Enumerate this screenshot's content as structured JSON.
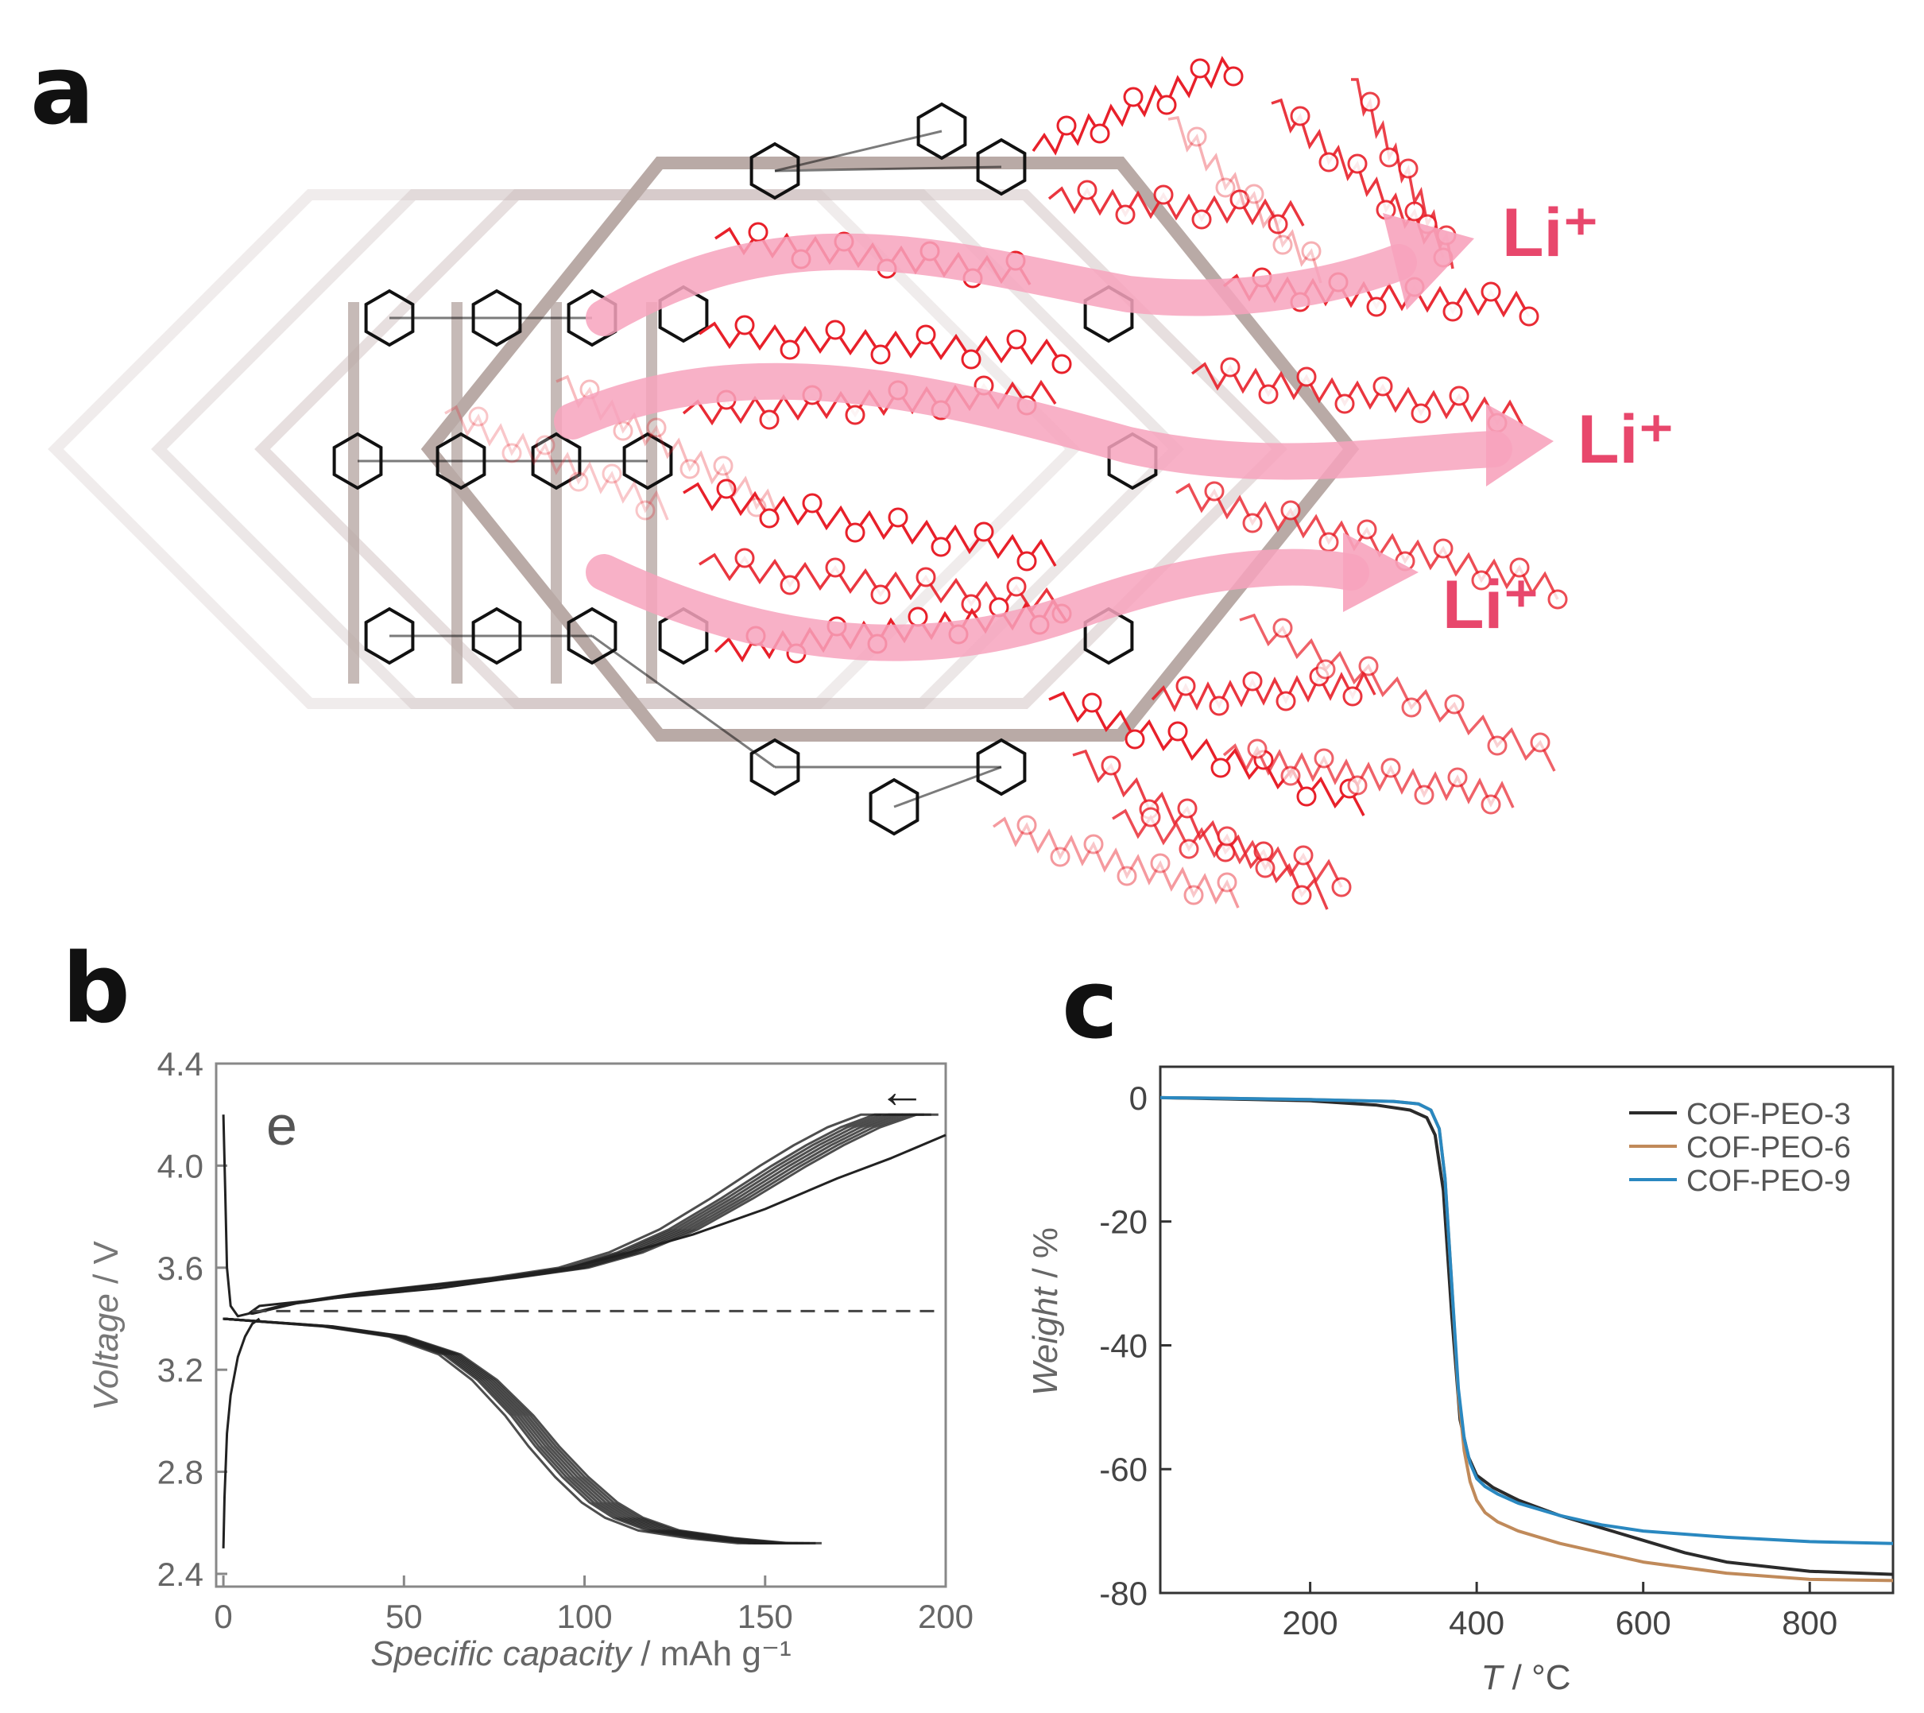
{
  "panels": {
    "a": {
      "label": "a",
      "li_labels": [
        "Li⁺",
        "Li⁺",
        "Li⁺"
      ],
      "colors": {
        "framework": "#111111",
        "faded": "#c9b9b9",
        "peo": "#e8202a",
        "arrow": "#f7a3bd",
        "li": "#e8476c"
      }
    },
    "b": {
      "label": "b"
    },
    "c": {
      "label": "c"
    }
  },
  "chart_data": [
    {
      "id": "b",
      "type": "line",
      "title": "",
      "inset_label": "e",
      "xlabel": "Specific capacity",
      "xunit": " / mAh g⁻¹",
      "ylabel": "Voltage",
      "yunit": " / V",
      "xlim": [
        -2,
        200
      ],
      "ylim": [
        2.35,
        4.4
      ],
      "xticks": [
        0,
        50,
        100,
        150,
        200
      ],
      "xtick_labels": [
        "0",
        "50",
        "100",
        "150",
        "200"
      ],
      "yticks": [
        2.4,
        2.8,
        3.2,
        3.6,
        4.0,
        4.4
      ],
      "ytick_labels": [
        "2.4",
        "2.8",
        "3.2",
        "3.6",
        "4.0",
        "4.4"
      ],
      "reference_line": {
        "y": 3.43,
        "style": "dashed"
      },
      "arrow_annotation": "←",
      "color": "#222222",
      "series": [
        {
          "name": "first charge",
          "x": [
            0,
            0.5,
            1,
            2,
            4,
            7,
            10,
            30,
            60,
            90,
            110,
            130,
            150,
            170,
            185,
            200
          ],
          "y": [
            4.2,
            3.9,
            3.6,
            3.45,
            3.41,
            3.42,
            3.45,
            3.48,
            3.52,
            3.58,
            3.65,
            3.73,
            3.83,
            3.95,
            4.03,
            4.12
          ]
        },
        {
          "name": "first discharge",
          "x": [
            0,
            0.3,
            1,
            2,
            4,
            6,
            8,
            10
          ],
          "y": [
            2.5,
            2.7,
            2.95,
            3.1,
            3.25,
            3.33,
            3.38,
            3.4
          ]
        },
        {
          "name": "charge cycles",
          "x": [
            8,
            20,
            40,
            60,
            80,
            100,
            115,
            130,
            145,
            160,
            170,
            180,
            190,
            196
          ],
          "y": [
            3.42,
            3.46,
            3.5,
            3.53,
            3.56,
            3.6,
            3.66,
            3.75,
            3.87,
            4.0,
            4.08,
            4.15,
            4.2,
            4.2
          ],
          "xscale_copies": [
            0.93,
            0.95,
            0.96,
            0.97,
            0.98,
            0.99,
            1.0,
            1.01
          ]
        },
        {
          "name": "discharge cycles",
          "x": [
            0,
            10,
            30,
            50,
            65,
            75,
            85,
            92,
            100,
            108,
            115,
            125,
            140,
            155,
            164
          ],
          "y": [
            3.4,
            3.39,
            3.37,
            3.33,
            3.26,
            3.16,
            3.02,
            2.9,
            2.78,
            2.68,
            2.62,
            2.57,
            2.54,
            2.52,
            2.52
          ],
          "xscale_copies": [
            0.92,
            0.94,
            0.95,
            0.96,
            0.97,
            0.98,
            0.99,
            1.0,
            1.01
          ]
        }
      ]
    },
    {
      "id": "c",
      "type": "line",
      "title": "",
      "xlabel": "T",
      "xunit": " / °C",
      "ylabel": "Weight",
      "yunit": " / %",
      "xlim": [
        20,
        900
      ],
      "ylim": [
        -80,
        5
      ],
      "xticks": [
        200,
        400,
        600,
        800
      ],
      "xtick_labels": [
        "200",
        "400",
        "600",
        "800"
      ],
      "yticks": [
        0,
        -20,
        -40,
        -60,
        -80
      ],
      "ytick_labels": [
        "0",
        "-20",
        "-40",
        "-60",
        "-80"
      ],
      "legend_position": "top-right",
      "series": [
        {
          "name": "COF-PEO-3",
          "color": "#2b2b2b",
          "x": [
            20,
            100,
            200,
            280,
            320,
            340,
            350,
            360,
            370,
            380,
            390,
            400,
            420,
            450,
            500,
            550,
            600,
            650,
            700,
            800,
            900
          ],
          "y": [
            0,
            -0.2,
            -0.5,
            -1.2,
            -2.0,
            -3.2,
            -6,
            -15,
            -35,
            -52,
            -58,
            -61,
            -63,
            -65,
            -67.5,
            -69.5,
            -71.5,
            -73.5,
            -75,
            -76.5,
            -77
          ]
        },
        {
          "name": "COF-PEO-6",
          "color": "#c08a5a",
          "x": [
            20,
            100,
            200,
            300,
            330,
            345,
            355,
            362,
            370,
            378,
            385,
            392,
            400,
            410,
            425,
            450,
            500,
            550,
            600,
            700,
            800,
            900
          ],
          "y": [
            0,
            -0.1,
            -0.3,
            -0.6,
            -1.0,
            -2.0,
            -5,
            -13,
            -30,
            -48,
            -57,
            -62,
            -65,
            -67,
            -68.5,
            -70,
            -72,
            -73.5,
            -75,
            -76.8,
            -77.8,
            -78
          ]
        },
        {
          "name": "COF-PEO-9",
          "color": "#2a88c0",
          "x": [
            20,
            100,
            200,
            300,
            330,
            345,
            355,
            362,
            370,
            378,
            385,
            392,
            400,
            410,
            425,
            450,
            500,
            550,
            600,
            700,
            800,
            900
          ],
          "y": [
            0,
            -0.1,
            -0.3,
            -0.6,
            -1.0,
            -2.0,
            -5,
            -13,
            -30,
            -47,
            -55,
            -59,
            -61.5,
            -62.8,
            -64,
            -65.5,
            -67.5,
            -69,
            -70,
            -71,
            -71.7,
            -72
          ]
        }
      ]
    }
  ]
}
